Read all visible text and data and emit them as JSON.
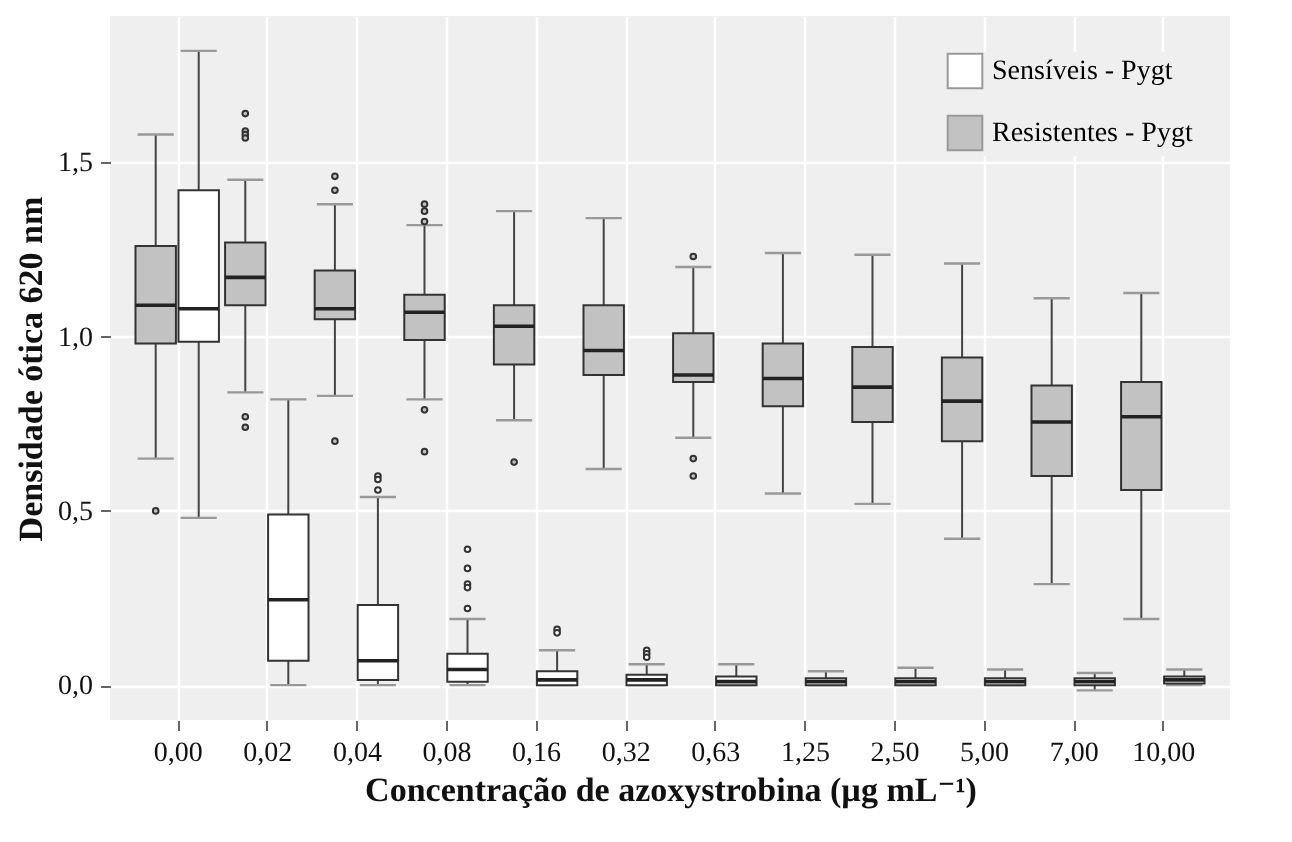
{
  "chart_data": {
    "type": "box",
    "xlabel": "Concentração de azoxystrobina (µg mL⁻¹)",
    "ylabel": "Densidade ótica 620 nm",
    "categories": [
      "0,00",
      "0,02",
      "0,04",
      "0,08",
      "0,16",
      "0,32",
      "0,63",
      "1,25",
      "2,50",
      "5,00",
      "7,00",
      "10,00"
    ],
    "ylim": [
      -0.1,
      1.92
    ],
    "yticks": [
      {
        "value": 0,
        "label": "0,0"
      },
      {
        "value": 0.5,
        "label": "0,5"
      },
      {
        "value": 1,
        "label": "1,0"
      },
      {
        "value": 1.5,
        "label": "1,5"
      }
    ],
    "grid": true,
    "legend": "top right",
    "series": [
      {
        "name": "Sensíveis - Pygt",
        "color": "#ffffff",
        "boxes": [
          {
            "low": 0.48,
            "q1": 0.985,
            "median": 1.08,
            "q3": 1.42,
            "high": 1.82
          },
          {
            "low": 0.0,
            "q1": 0.07,
            "median": 0.245,
            "q3": 0.49,
            "high": 0.82
          },
          {
            "low": 0.0,
            "q1": 0.015,
            "median": 0.07,
            "q3": 0.23,
            "high": 0.54,
            "outliers": [
              0.6,
              0.59,
              0.56
            ]
          },
          {
            "low": 0.0,
            "q1": 0.01,
            "median": 0.045,
            "q3": 0.09,
            "high": 0.19,
            "outliers": [
              0.39,
              0.335,
              0.29,
              0.28,
              0.22
            ]
          },
          {
            "low": 0.0,
            "q1": 0.0,
            "median": 0.015,
            "q3": 0.04,
            "high": 0.1,
            "outliers": [
              0.16,
              0.15
            ]
          },
          {
            "low": 0.0,
            "q1": 0.0,
            "median": 0.015,
            "q3": 0.03,
            "high": 0.06,
            "outliers": [
              0.1,
              0.09,
              0.08
            ]
          },
          {
            "low": 0.0,
            "q1": 0.0,
            "median": 0.01,
            "q3": 0.025,
            "high": 0.06
          },
          {
            "low": 0.0,
            "q1": 0.0,
            "median": 0.01,
            "q3": 0.02,
            "high": 0.04
          },
          {
            "low": 0.0,
            "q1": 0.0,
            "median": 0.01,
            "q3": 0.02,
            "high": 0.05
          },
          {
            "low": 0.0,
            "q1": 0.0,
            "median": 0.01,
            "q3": 0.02,
            "high": 0.045
          },
          {
            "low": -0.015,
            "q1": 0.0,
            "median": 0.01,
            "q3": 0.02,
            "high": 0.035
          },
          {
            "low": 0.0,
            "q1": 0.005,
            "median": 0.015,
            "q3": 0.025,
            "high": 0.045
          }
        ]
      },
      {
        "name": "Resistentes - Pygt",
        "color": "#c2c2c2",
        "boxes": [
          {
            "low": 0.65,
            "q1": 0.98,
            "median": 1.09,
            "q3": 1.26,
            "high": 1.58,
            "outliers": [
              0.5
            ]
          },
          {
            "low": 0.84,
            "q1": 1.09,
            "median": 1.17,
            "q3": 1.27,
            "high": 1.45,
            "outliers": [
              1.64,
              1.59,
              1.58,
              1.57,
              0.77,
              0.74
            ]
          },
          {
            "low": 0.83,
            "q1": 1.05,
            "median": 1.08,
            "q3": 1.19,
            "high": 1.38,
            "outliers": [
              1.46,
              1.42,
              0.7
            ]
          },
          {
            "low": 0.82,
            "q1": 0.99,
            "median": 1.07,
            "q3": 1.12,
            "high": 1.32,
            "outliers": [
              1.38,
              1.36,
              1.33,
              0.79,
              0.67
            ]
          },
          {
            "low": 0.76,
            "q1": 0.92,
            "median": 1.03,
            "q3": 1.09,
            "high": 1.36,
            "outliers": [
              0.64
            ]
          },
          {
            "low": 0.62,
            "q1": 0.89,
            "median": 0.96,
            "q3": 1.09,
            "high": 1.34
          },
          {
            "low": 0.71,
            "q1": 0.87,
            "median": 0.89,
            "q3": 1.01,
            "high": 1.2,
            "outliers": [
              1.23,
              0.65,
              0.6
            ]
          },
          {
            "low": 0.55,
            "q1": 0.8,
            "median": 0.88,
            "q3": 0.98,
            "high": 1.24
          },
          {
            "low": 0.52,
            "q1": 0.755,
            "median": 0.855,
            "q3": 0.97,
            "high": 1.235
          },
          {
            "low": 0.42,
            "q1": 0.7,
            "median": 0.815,
            "q3": 0.94,
            "high": 1.21
          },
          {
            "low": 0.29,
            "q1": 0.6,
            "median": 0.755,
            "q3": 0.86,
            "high": 1.11
          },
          {
            "low": 0.19,
            "q1": 0.56,
            "median": 0.77,
            "q3": 0.87,
            "high": 1.125
          }
        ]
      }
    ]
  }
}
